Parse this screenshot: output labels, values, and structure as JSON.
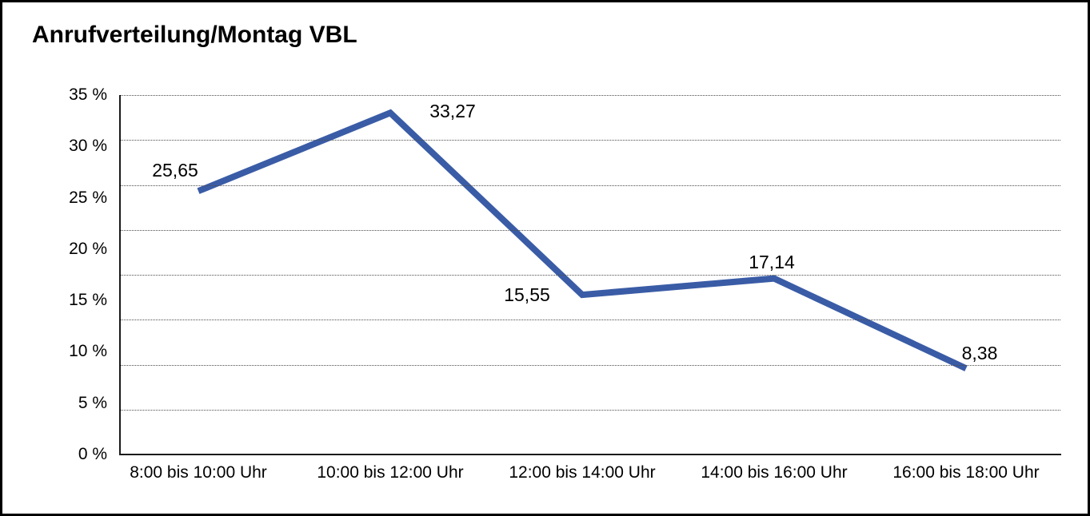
{
  "chart_data": {
    "type": "line",
    "title": "Anrufverteilung/Montag VBL",
    "categories": [
      "8:00 bis 10:00 Uhr",
      "10:00 bis 12:00 Uhr",
      "12:00 bis 14:00 Uhr",
      "14:00 bis 16:00 Uhr",
      "16:00 bis 18:00 Uhr"
    ],
    "values": [
      25.65,
      33.27,
      15.55,
      17.14,
      8.38
    ],
    "point_labels": [
      "25,65",
      "33,27",
      "15,55",
      "17,14",
      "8,38"
    ],
    "y_ticks": [
      "35 %",
      "30 %",
      "25 %",
      "20 %",
      "15 %",
      "10 %",
      "5 %",
      "0 %"
    ],
    "ylim": [
      0,
      35
    ],
    "xlabel": "",
    "ylabel": "",
    "legend": "none",
    "grid": "dotted-horizontal",
    "line_color": "#3A5CA6",
    "axis_color": "#1a1a1a",
    "background_color": "#ffffff"
  }
}
